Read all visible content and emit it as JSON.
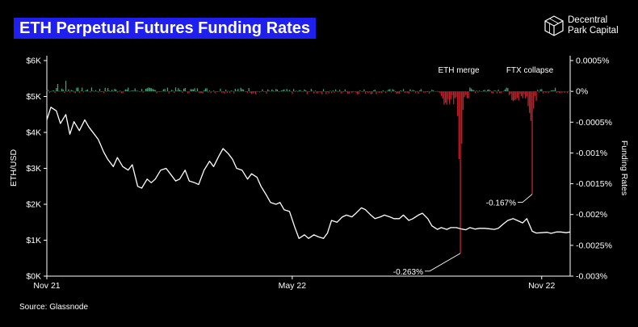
{
  "header": {
    "title": "ETH Perpetual Futures Funding Rates"
  },
  "brand": {
    "line1": "Decentral",
    "line2": "Park Capital"
  },
  "footer": {
    "source": "Source: Glassnode"
  },
  "colors": {
    "price_line": "#ffffff",
    "positive_bar": "#3aa37a",
    "negative_bar": "#c0242c",
    "background": "#000000",
    "title_bg": "#1f1ff0"
  },
  "chart_data": {
    "type": "bar+line",
    "ylabel": "ETH/USD",
    "y2label": "Funding Rates",
    "ylim": [
      0,
      6000
    ],
    "y2lim": [
      -0.003,
      0.0005
    ],
    "yticks": [
      "$0K",
      "$1K",
      "$2K",
      "$3K",
      "$4K",
      "$5K",
      "$6K"
    ],
    "y2ticks": [
      "-0.003%",
      "-0.0025%",
      "-0.002%",
      "-0.0015%",
      "-0.001%",
      "-0.0005%",
      "0%",
      "0.0005%"
    ],
    "xticks": [
      {
        "label": "Nov 21",
        "t": 0
      },
      {
        "label": "May 22",
        "t": 181
      },
      {
        "label": "Nov 22",
        "t": 365
      }
    ],
    "annotations": [
      {
        "label": "ETH merge",
        "t": 305
      },
      {
        "label": "FTX collapse",
        "t": 358
      },
      {
        "label": "-0.263%",
        "t": 305,
        "value": -0.00263
      },
      {
        "label": "-0.167%",
        "t": 358,
        "value": -0.00167
      }
    ],
    "price_series": {
      "name": "ETH/USD",
      "t": [
        0,
        3,
        7,
        10,
        14,
        17,
        20,
        24,
        28,
        31,
        35,
        38,
        42,
        45,
        49,
        52,
        56,
        60,
        63,
        67,
        70,
        74,
        77,
        80,
        84,
        88,
        91,
        95,
        98,
        102,
        105,
        109,
        112,
        116,
        120,
        123,
        127,
        130,
        134,
        137,
        140,
        144,
        148,
        151,
        155,
        158,
        162,
        165,
        169,
        172,
        175,
        179,
        183,
        186,
        190,
        193,
        197,
        200,
        204,
        207,
        210,
        214,
        218,
        221,
        225,
        228,
        232,
        235,
        239,
        242,
        246,
        249,
        253,
        256,
        260,
        263,
        267,
        270,
        274,
        277,
        281,
        284,
        288,
        291,
        295,
        298,
        302,
        305,
        309,
        312,
        316,
        319,
        323,
        326,
        330,
        333,
        337,
        340,
        344,
        347,
        351,
        354,
        358,
        361,
        365,
        369,
        372,
        376,
        379,
        383,
        386
      ],
      "values": [
        4350,
        4700,
        4600,
        4250,
        4500,
        3950,
        4300,
        4050,
        4350,
        4150,
        3950,
        3800,
        3450,
        3250,
        3050,
        3300,
        3050,
        2950,
        3100,
        2500,
        2450,
        2700,
        2600,
        2700,
        2950,
        3000,
        2850,
        2650,
        2700,
        2950,
        2650,
        2600,
        2550,
        2950,
        3200,
        3050,
        3350,
        3550,
        3400,
        3250,
        3000,
        2950,
        2700,
        2850,
        2750,
        2500,
        2250,
        2050,
        2000,
        2050,
        1850,
        1800,
        1350,
        1050,
        1150,
        1050,
        1150,
        1100,
        1050,
        1200,
        1550,
        1500,
        1650,
        1700,
        1650,
        1750,
        1900,
        1850,
        1700,
        1600,
        1650,
        1700,
        1650,
        1600,
        1600,
        1700,
        1550,
        1600,
        1700,
        1750,
        1600,
        1400,
        1300,
        1350,
        1300,
        1350,
        1350,
        1320,
        1290,
        1350,
        1310,
        1330,
        1330,
        1320,
        1300,
        1330,
        1460,
        1550,
        1600,
        1550,
        1480,
        1600,
        1250,
        1200,
        1210,
        1220,
        1190,
        1230,
        1230,
        1210,
        1230
      ]
    },
    "funding_series": {
      "name": "Funding Rates",
      "spikes": [
        {
          "t": 305,
          "value": -0.00263
        },
        {
          "t": 304,
          "value": -0.0011
        },
        {
          "t": 306,
          "value": -0.00085
        },
        {
          "t": 303,
          "value": -0.0004
        },
        {
          "t": 307,
          "value": -0.0003
        },
        {
          "t": 358,
          "value": -0.00167
        },
        {
          "t": 357,
          "value": -0.00048
        },
        {
          "t": 356,
          "value": -0.00035
        },
        {
          "t": 359,
          "value": -0.00028
        },
        {
          "t": 355,
          "value": -0.00024
        }
      ]
    }
  }
}
